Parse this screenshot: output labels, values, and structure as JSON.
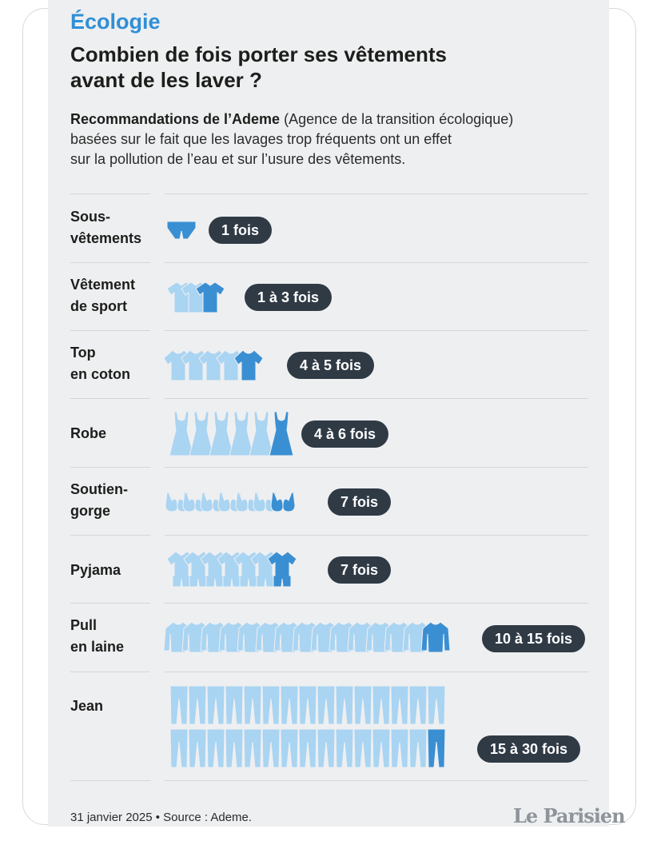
{
  "header": {
    "kicker": "Écologie",
    "title_line1": "Combien de fois porter ses vêtements",
    "title_line2": "avant de les laver ?",
    "intro_bold": "Recommandations de l’Ademe",
    "intro_line1_rest": " (Agence de la transition écologique)",
    "intro_line2": "basées sur le fait que les lavages trop fréquents ont un effet",
    "intro_line3": "sur la pollution de l’eau et sur l’usure des vêtements."
  },
  "footer": {
    "date_source": "31 janvier 2025 • Source : Ademe.",
    "logo_text": "Le Parisien"
  },
  "colors": {
    "accent": "#2f8fd6",
    "icon_light": "#a9d4f2",
    "icon_dark": "#3a8fd3",
    "pill": "#2f3a45",
    "background": "#eeeff1"
  },
  "chart_data": {
    "type": "bar",
    "categories": [
      {
        "line1": "Sous-",
        "line2": "vêtements"
      },
      {
        "line1": "Vêtement",
        "line2": "de sport"
      },
      {
        "line1": "Top",
        "line2": "en coton"
      },
      {
        "line1": "Robe",
        "line2": ""
      },
      {
        "line1": "Soutien-",
        "line2": "gorge"
      },
      {
        "line1": "Pyjama",
        "line2": ""
      },
      {
        "line1": "Pull",
        "line2": "en laine"
      },
      {
        "line1": "Jean",
        "line2": ""
      }
    ],
    "values": [
      {
        "min": 1,
        "max": 1,
        "label": "1 fois",
        "icon": "underwear-icon"
      },
      {
        "min": 1,
        "max": 3,
        "label": "1 à 3 fois",
        "icon": "sport-shirt-icon"
      },
      {
        "min": 4,
        "max": 5,
        "label": "4 à 5 fois",
        "icon": "cotton-top-icon"
      },
      {
        "min": 4,
        "max": 6,
        "label": "4 à 6 fois",
        "icon": "dress-icon"
      },
      {
        "min": 7,
        "max": 7,
        "label": "7 fois",
        "icon": "bra-icon"
      },
      {
        "min": 7,
        "max": 7,
        "label": "7 fois",
        "icon": "pyjama-icon"
      },
      {
        "min": 10,
        "max": 15,
        "label": "10 à 15 fois",
        "icon": "wool-sweater-icon"
      },
      {
        "min": 15,
        "max": 30,
        "label": "15 à 30 fois",
        "icon": "jeans-icon"
      }
    ],
    "title": "Combien de fois porter ses vêtements avant de les laver ?",
    "xlabel": "",
    "ylabel": ""
  }
}
